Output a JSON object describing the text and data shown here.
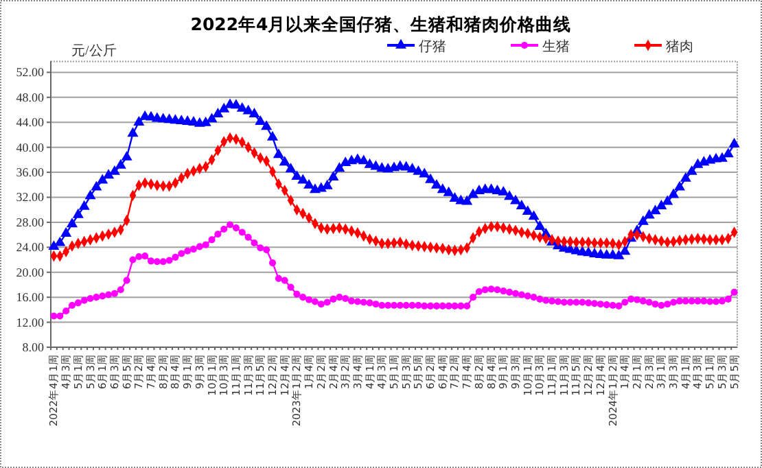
{
  "chart_data": {
    "type": "line",
    "title": "2022年4月以来全国仔猪、生猪和猪肉价格曲线",
    "ylabel": "元/公斤",
    "categories": [
      "2022年4月1周",
      null,
      "4月3周",
      null,
      "5月1周",
      null,
      "5月3周",
      null,
      "6月1周",
      null,
      "6月3周",
      null,
      "6月5周",
      null,
      "7月2周",
      null,
      "7月4周",
      null,
      "8月2周",
      null,
      "8月4周",
      null,
      "9月1周",
      null,
      "9月3周",
      null,
      "10月1周",
      null,
      "10月3周",
      null,
      "11月1周",
      null,
      "11月3周",
      null,
      "11月5周",
      null,
      "12月2周",
      null,
      "12月4周",
      null,
      "2023年1月2周",
      null,
      "1月4周",
      null,
      "2月2周",
      null,
      "2月4周",
      null,
      "3月2周",
      null,
      "3月4周",
      null,
      "4月1周",
      null,
      "4月3周",
      null,
      "5月1周",
      null,
      "5月3周",
      null,
      "5月5周",
      null,
      "6月2周",
      null,
      "6月4周",
      null,
      "7月2周",
      null,
      "7月4周",
      null,
      "8月2周",
      null,
      "8月4周",
      null,
      "9月1周",
      null,
      "9月3周",
      null,
      "10月1周",
      null,
      "10月3周",
      null,
      "11月1周",
      null,
      "11月3周",
      null,
      "11月5周",
      null,
      "12月2周",
      null,
      "12月4周",
      null,
      "2024年1月2周",
      null,
      "1月4周",
      null,
      "2月1周",
      null,
      "2月3周",
      null,
      "3月1周",
      null,
      "3月3周",
      null,
      "4月1周",
      null,
      "4月3周",
      null,
      "5月1周",
      null,
      "5月3周",
      null,
      "5月5周"
    ],
    "series": [
      {
        "name": "仔猪",
        "color": "#0000ff",
        "marker": "triangle",
        "values": [
          24.1,
          24.7,
          26.2,
          27.7,
          29.2,
          30.5,
          32.2,
          33.6,
          34.7,
          35.5,
          36.1,
          37.1,
          38.4,
          42.2,
          44,
          44.9,
          44.8,
          44.6,
          44.5,
          44.4,
          44.3,
          44.2,
          44.1,
          44.0,
          43.8,
          43.9,
          44.5,
          45.3,
          46.1,
          46.8,
          46.7,
          46.2,
          45.8,
          45.3,
          44.1,
          43.3,
          41.6,
          38.8,
          37.6,
          36.5,
          35.3,
          34.7,
          33.9,
          33.2,
          33.4,
          33.8,
          35.2,
          36.6,
          37.5,
          37.8,
          38.0,
          37.8,
          37.2,
          36.9,
          36.6,
          36.5,
          36.7,
          36.9,
          36.8,
          36.5,
          36.1,
          35.7,
          34.8,
          33.9,
          33.2,
          32.7,
          31.8,
          31.4,
          31.3,
          32.4,
          33.0,
          33.2,
          33.2,
          33.0,
          32.8,
          32.1,
          31.4,
          30.6,
          29.7,
          28.9,
          27.3,
          26.1,
          24.8,
          24.2,
          23.8,
          23.6,
          23.4,
          23.2,
          23.1,
          22.9,
          22.8,
          22.7,
          22.7,
          22.6,
          23.3,
          25.4,
          26.6,
          28.1,
          29.1,
          29.8,
          30.6,
          31.3,
          32.4,
          33.6,
          35.0,
          36.1,
          37.2,
          37.6,
          37.9,
          38.1,
          38.2,
          38.9,
          40.5
        ]
      },
      {
        "name": "生猪",
        "color": "#ff00ff",
        "marker": "circle",
        "values": [
          13.0,
          13.0,
          13.8,
          14.7,
          15.1,
          15.5,
          15.8,
          16.0,
          16.2,
          16.4,
          16.6,
          17.2,
          18.7,
          22.0,
          22.5,
          22.6,
          21.8,
          21.7,
          21.7,
          21.9,
          22.4,
          23.0,
          23.4,
          23.7,
          24.1,
          24.4,
          25.2,
          26.1,
          26.9,
          27.6,
          27.1,
          26.4,
          25.6,
          24.7,
          23.9,
          23.6,
          21.5,
          19.0,
          18.7,
          17.6,
          16.5,
          16.0,
          15.6,
          15.3,
          14.9,
          15.2,
          15.7,
          16.0,
          15.8,
          15.4,
          15.3,
          15.2,
          15.1,
          14.9,
          14.7,
          14.7,
          14.7,
          14.7,
          14.7,
          14.7,
          14.7,
          14.6,
          14.6,
          14.6,
          14.6,
          14.6,
          14.6,
          14.6,
          14.6,
          16.0,
          16.9,
          17.2,
          17.3,
          17.2,
          17.0,
          16.8,
          16.6,
          16.4,
          16.2,
          16.0,
          15.7,
          15.5,
          15.4,
          15.3,
          15.2,
          15.2,
          15.2,
          15.2,
          15.1,
          15.0,
          14.9,
          14.8,
          14.7,
          14.6,
          15.2,
          15.7,
          15.6,
          15.4,
          15.2,
          14.9,
          14.7,
          14.9,
          15.2,
          15.4,
          15.4,
          15.4,
          15.4,
          15.4,
          15.3,
          15.3,
          15.4,
          15.7,
          16.8
        ]
      },
      {
        "name": "猪肉",
        "color": "#ff0000",
        "marker": "diamond",
        "values": [
          22.6,
          22.6,
          23.3,
          24.2,
          24.6,
          24.9,
          25.2,
          25.5,
          25.8,
          26.1,
          26.4,
          26.8,
          28.3,
          32.3,
          33.9,
          34.3,
          34.1,
          33.9,
          33.8,
          33.8,
          34.3,
          35.1,
          35.8,
          36.2,
          36.6,
          36.9,
          38.0,
          39.5,
          40.9,
          41.5,
          41.3,
          40.8,
          40.0,
          39.1,
          38.3,
          37.8,
          36.1,
          34.1,
          33.1,
          31.5,
          30.0,
          29.4,
          28.7,
          27.8,
          27.1,
          26.9,
          27.0,
          27.1,
          26.9,
          26.6,
          26.3,
          25.8,
          25.3,
          25.0,
          24.6,
          24.6,
          24.7,
          24.8,
          24.5,
          24.3,
          24.2,
          24.1,
          24.0,
          23.9,
          23.8,
          23.6,
          23.5,
          23.6,
          23.9,
          25.5,
          26.5,
          27.0,
          27.3,
          27.3,
          27.1,
          26.9,
          26.7,
          26.4,
          26.2,
          25.9,
          25.6,
          25.4,
          25.2,
          25.0,
          24.9,
          24.9,
          24.8,
          24.8,
          24.8,
          24.7,
          24.7,
          24.7,
          24.6,
          24.4,
          24.9,
          26.0,
          26.0,
          25.7,
          25.4,
          25.2,
          25.0,
          24.8,
          24.9,
          25.1,
          25.2,
          25.3,
          25.4,
          25.3,
          25.2,
          25.2,
          25.2,
          25.4,
          26.4
        ]
      }
    ],
    "ylim": [
      8,
      52
    ],
    "yticks": [
      {
        "value": 8,
        "label": "8.00"
      },
      {
        "value": 12,
        "label": "12.00"
      },
      {
        "value": 16,
        "label": "16.00"
      },
      {
        "value": 20,
        "label": "20.00"
      },
      {
        "value": 24,
        "label": "24.00"
      },
      {
        "value": 28,
        "label": "28.00"
      },
      {
        "value": 32,
        "label": "32.00"
      },
      {
        "value": 36,
        "label": "36.00"
      },
      {
        "value": 40,
        "label": "40.00"
      },
      {
        "value": 44,
        "label": "44.00"
      },
      {
        "value": 48,
        "label": "48.00"
      },
      {
        "value": 52,
        "label": "52.00"
      }
    ],
    "grid": "y",
    "legend": "top right",
    "line_style": "solid"
  }
}
